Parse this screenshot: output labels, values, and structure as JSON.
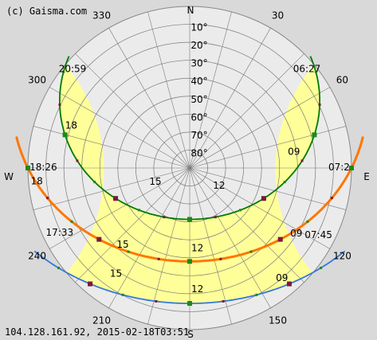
{
  "header": {
    "copyright": "(c) Gaisma.com"
  },
  "footer": {
    "stamp": "104.128.161.92, 2015-02-18T03:51"
  },
  "colors": {
    "background": "#d9d9d9",
    "outer_disc": "#ebebeb",
    "daylight_band": "#ffff99",
    "grid": "#7a7a7a",
    "summer_path": "#007a00",
    "equinox_path": "#ff7700",
    "winter_path": "#3377dd",
    "marker_dark": "#7a1a3a",
    "marker_green": "#1b8a1b"
  },
  "chart_data": {
    "type": "sun-path",
    "projection": "polar (azimuth / altitude)",
    "cardinals": {
      "n": "N",
      "e": "E",
      "s": "S",
      "w": "W"
    },
    "azimuth_ticks": [
      {
        "az": 30,
        "label": "30"
      },
      {
        "az": 60,
        "label": "60"
      },
      {
        "az": 120,
        "label": "120"
      },
      {
        "az": 150,
        "label": "150"
      },
      {
        "az": 210,
        "label": "210"
      },
      {
        "az": 240,
        "label": "240"
      },
      {
        "az": 300,
        "label": "300"
      },
      {
        "az": 330,
        "label": "330"
      }
    ],
    "altitude_rings": [
      {
        "alt": 10,
        "label": "10°"
      },
      {
        "alt": 20,
        "label": "20°"
      },
      {
        "alt": 30,
        "label": "30°"
      },
      {
        "alt": 40,
        "label": "40°"
      },
      {
        "alt": 50,
        "label": "50°"
      },
      {
        "alt": 60,
        "label": "60°"
      },
      {
        "alt": 70,
        "label": "70°"
      },
      {
        "alt": 80,
        "label": "80°"
      }
    ],
    "series": [
      {
        "key": "summer",
        "color": "#007a00",
        "labels": [
          {
            "text": "20:59",
            "az": 305,
            "alt": 0,
            "anchor": "start"
          },
          {
            "text": "06:27",
            "az": 55,
            "alt": 0,
            "anchor": "end"
          },
          {
            "text": "18",
            "az": 286,
            "alt": 17,
            "anchor": "start"
          },
          {
            "text": "15",
            "az": 240,
            "alt": 68,
            "anchor": "middle"
          },
          {
            "text": "12",
            "az": 138,
            "alt": 72,
            "anchor": "start"
          },
          {
            "text": "09",
            "az": 84,
            "alt": 36,
            "anchor": "start"
          }
        ]
      },
      {
        "key": "equinox",
        "color": "#ff7700",
        "labels": [
          {
            "text": "18:26",
            "az": 268,
            "alt": 0,
            "anchor": "start"
          },
          {
            "text": "07:2",
            "az": 92,
            "alt": 0,
            "anchor": "end"
          },
          {
            "text": "18",
            "az": 263,
            "alt": 0,
            "anchor": "start"
          },
          {
            "text": "15",
            "az": 222,
            "alt": 28,
            "anchor": "start"
          },
          {
            "text": "12",
            "az": 180,
            "alt": 42,
            "anchor": "start"
          },
          {
            "text": "09",
            "az": 126,
            "alt": 22,
            "anchor": "start"
          }
        ]
      },
      {
        "key": "winter",
        "color": "#3377dd",
        "labels": [
          {
            "text": "17:33",
            "az": 244,
            "alt": 0,
            "anchor": "start"
          },
          {
            "text": "07:45",
            "az": 117,
            "alt": 0,
            "anchor": "end"
          },
          {
            "text": "15",
            "az": 216,
            "alt": 13,
            "anchor": "start"
          },
          {
            "text": "12",
            "az": 180,
            "alt": 19,
            "anchor": "start"
          },
          {
            "text": "09",
            "az": 144,
            "alt": 10,
            "anchor": "start"
          }
        ]
      }
    ]
  }
}
